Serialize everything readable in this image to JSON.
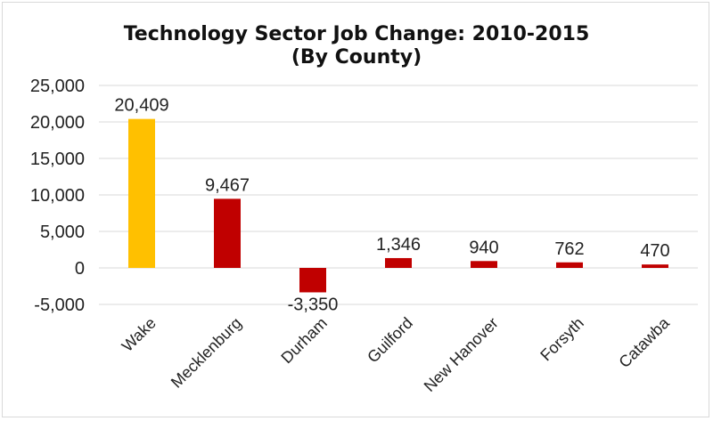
{
  "chart_data": {
    "type": "bar",
    "title": "Technology Sector Job Change: 2010-2015",
    "subtitle": "(By County)",
    "xlabel": "",
    "ylabel": "",
    "categories": [
      "Wake",
      "Mecklenburg",
      "Durham",
      "Guilford",
      "New Hanover",
      "Forsyth",
      "Catawba"
    ],
    "values": [
      20409,
      9467,
      -3350,
      1346,
      940,
      762,
      470
    ],
    "value_labels": [
      "20,409",
      "9,467",
      "-3,350",
      "1,346",
      "940",
      "762",
      "470"
    ],
    "ylim": [
      -5000,
      25000
    ],
    "yticks": [
      25000,
      20000,
      15000,
      10000,
      5000,
      0,
      -5000
    ],
    "ytick_labels": [
      "25,000",
      "20,000",
      "15,000",
      "10,000",
      "5,000",
      "0",
      "-5,000"
    ],
    "grid": true,
    "legend": "none",
    "colors": {
      "highlight": "#FFC000",
      "bar": "#C00000"
    },
    "bar_colors": [
      "#FFC000",
      "#C00000",
      "#C00000",
      "#C00000",
      "#C00000",
      "#C00000",
      "#C00000"
    ]
  }
}
